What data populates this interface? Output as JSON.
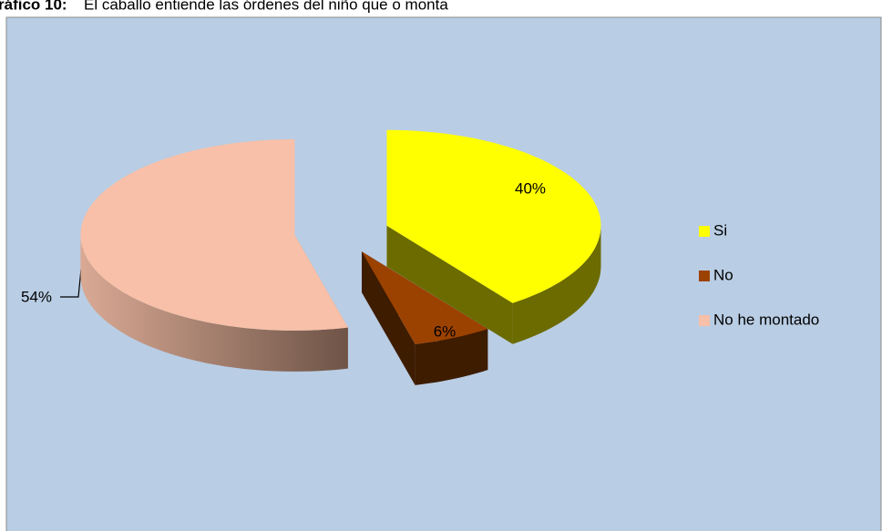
{
  "chart_data": {
    "type": "pie",
    "title_label": "ráfico  10:",
    "title": "El caballo entiende las órdenes del niño que o monta",
    "categories": [
      "Si",
      "No",
      "No he montado"
    ],
    "values": [
      40,
      6,
      54
    ],
    "value_labels": [
      "40%",
      "6%",
      "54%"
    ],
    "colors": [
      "#ffff00",
      "#9c4200",
      "#f8c0a8"
    ],
    "side_colors": [
      "#6b6b00",
      "#3d1c00",
      "#b88e7c"
    ],
    "legend": "right"
  }
}
